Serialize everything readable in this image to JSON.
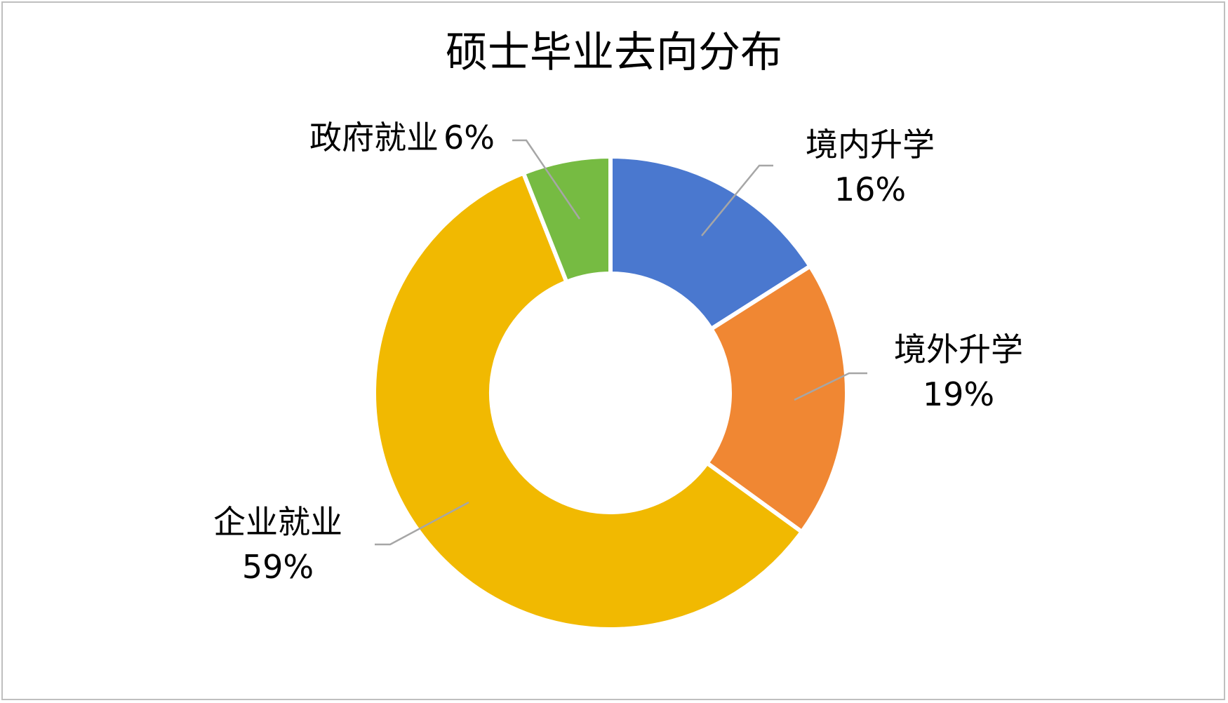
{
  "chart_data": {
    "type": "pie",
    "style": "donut",
    "title": "硕士毕业去向分布",
    "categories": [
      "境内升学",
      "境外升学",
      "企业就业",
      "政府就业"
    ],
    "values": [
      16,
      19,
      59,
      6
    ],
    "value_labels": [
      "16%",
      "19%",
      "59%",
      "6%"
    ],
    "colors": [
      "#4a78cf",
      "#f08733",
      "#f1b901",
      "#76bb42"
    ],
    "leader_line_color": "#a6a6a6",
    "legend": "none"
  }
}
